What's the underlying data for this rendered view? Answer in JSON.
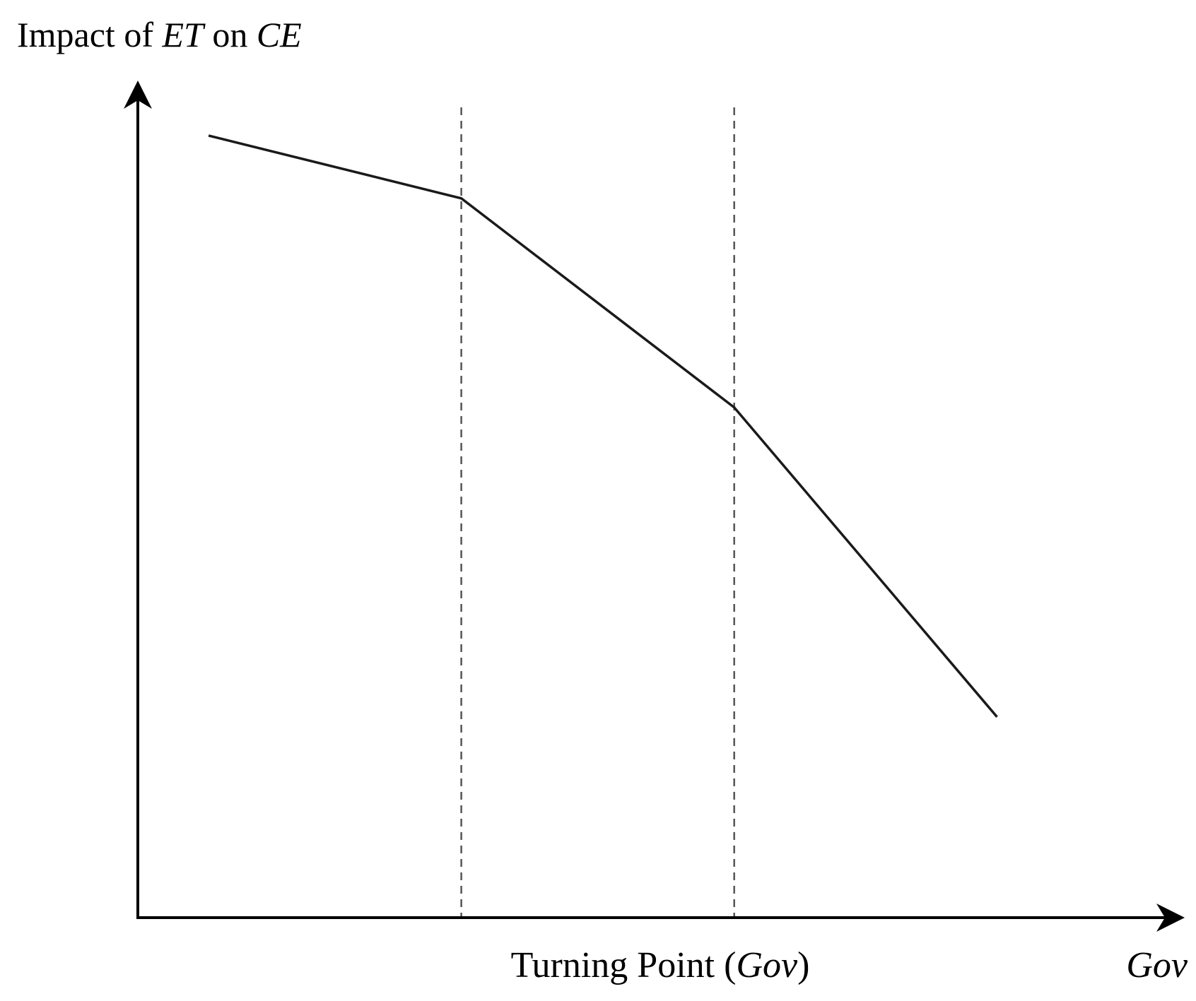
{
  "chart_data": {
    "type": "line",
    "title": "",
    "ylabel_parts": [
      {
        "text": "Impact of ",
        "italic": false
      },
      {
        "text": "ET",
        "italic": true
      },
      {
        "text": " on ",
        "italic": false
      },
      {
        "text": "CE",
        "italic": true
      }
    ],
    "xlabel": "Gov",
    "turning_point_label_parts": [
      {
        "text": "Turning Point (",
        "italic": false
      },
      {
        "text": "Gov",
        "italic": true
      },
      {
        "text": ")",
        "italic": false
      }
    ],
    "xlim": [
      0,
      10
    ],
    "ylim": [
      0,
      10
    ],
    "series": [
      {
        "x": [
          0.7,
          3.2,
          5.9,
          8.5
        ],
        "y": [
          9.35,
          8.6,
          6.1,
          2.4
        ]
      }
    ],
    "turning_points_x": [
      3.2,
      5.9
    ],
    "grid": false,
    "line_color": "#1a1a1a",
    "dashed_color": "#555555"
  }
}
